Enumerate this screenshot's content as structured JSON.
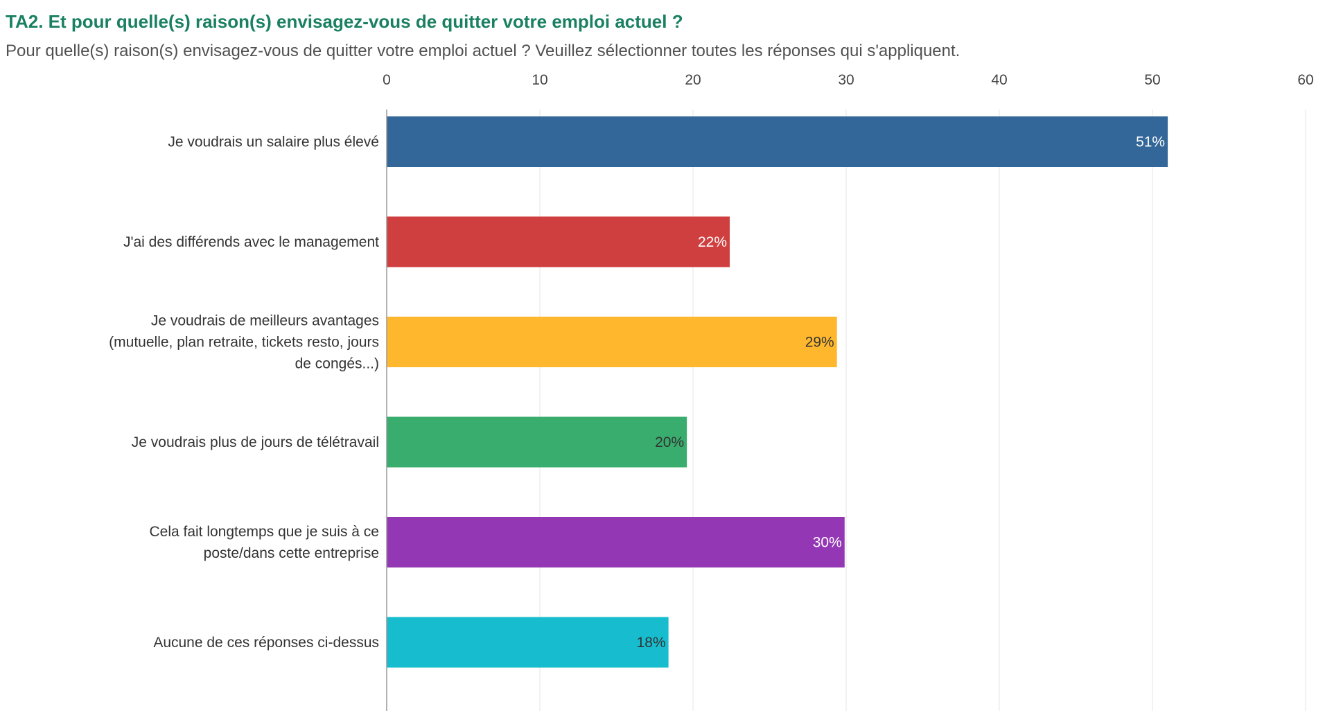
{
  "title": "TA2. Et pour quelle(s) raison(s) envisagez-vous de quitter votre emploi actuel ?",
  "subtitle": "Pour quelle(s) raison(s) envisagez-vous de quitter votre emploi actuel ? Veuillez sélectionner toutes les réponses qui s'appliquent.",
  "colors": {
    "title": "#1a8062",
    "grid": "#e6e6e6",
    "axis": "#999999"
  },
  "chart_data": {
    "type": "bar",
    "orientation": "horizontal",
    "categories": [
      [
        "Je voudrais un salaire plus élevé"
      ],
      [
        "J'ai des différends avec le management"
      ],
      [
        "Je voudrais de meilleurs avantages",
        "(mutuelle, plan retraite, tickets resto, jours",
        "de congés...)"
      ],
      [
        "Je voudrais plus de jours de télétravail"
      ],
      [
        "Cela fait longtemps que je suis à ce",
        "poste/dans cette entreprise"
      ],
      [
        "Aucune de ces réponses ci-dessus"
      ]
    ],
    "values": [
      51,
      22.4,
      29.4,
      19.6,
      29.9,
      18.4
    ],
    "data_labels": [
      "51%",
      "22%",
      "29%",
      "20%",
      "30%",
      "18%"
    ],
    "bar_colors": [
      "#336699",
      "#d03f3f",
      "#ffb82e",
      "#38ad6d",
      "#9337b4",
      "#17bdcf"
    ],
    "label_colors": [
      "#ffffff",
      "#ffffff",
      "#333333",
      "#333333",
      "#ffffff",
      "#333333"
    ],
    "xlim": [
      0,
      60
    ],
    "xticks": [
      "0",
      "10",
      "20",
      "30",
      "40",
      "50",
      "60"
    ],
    "xtick_values": [
      0,
      10,
      20,
      30,
      40,
      50,
      60
    ],
    "grid": true,
    "legend": "none"
  }
}
